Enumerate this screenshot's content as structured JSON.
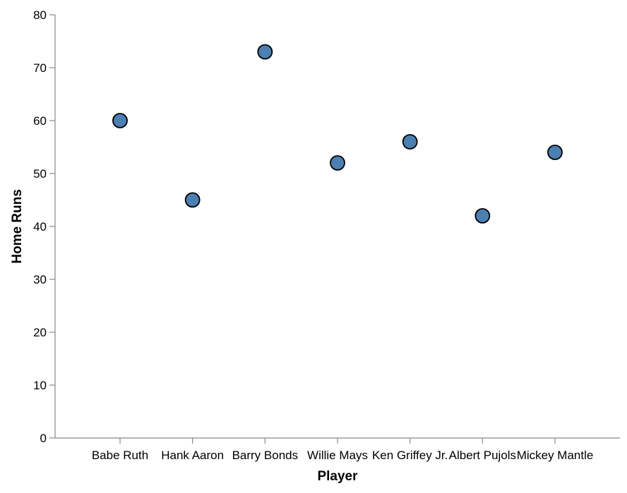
{
  "chart_data": {
    "type": "scatter",
    "title": "",
    "xlabel": "Player",
    "ylabel": "Home Runs",
    "categories": [
      "Babe Ruth",
      "Hank Aaron",
      "Barry Bonds",
      "Willie Mays",
      "Ken Griffey Jr.",
      "Albert Pujols",
      "Mickey Mantle"
    ],
    "values": [
      60,
      45,
      73,
      52,
      56,
      42,
      54
    ],
    "ylim": [
      0,
      80
    ],
    "yticks": [
      0,
      10,
      20,
      30,
      40,
      50,
      60,
      70,
      80
    ],
    "grid": false,
    "point_color": "#4c7fb2",
    "point_stroke": "#000000",
    "axis_color": "#888888"
  }
}
